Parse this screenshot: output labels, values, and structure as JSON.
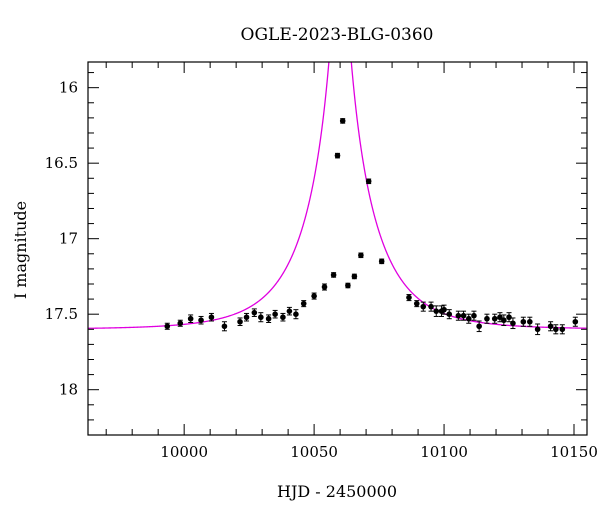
{
  "chart_data": {
    "type": "scatter",
    "title": "OGLE-2023-BLG-0360",
    "xlabel": "HJD - 2450000",
    "ylabel": "I magnitude",
    "xlim": [
      9963,
      10155
    ],
    "ylim": [
      18.3,
      15.83
    ],
    "y_inverted": true,
    "xticks": [
      10000,
      10050,
      10100,
      10150
    ],
    "yticks": [
      16,
      16.5,
      17,
      17.5,
      18
    ],
    "xtick_labels": [
      "10000",
      "10050",
      "10100",
      "10150"
    ],
    "ytick_labels": [
      "16",
      "16.5",
      "17",
      "17.5",
      "18"
    ],
    "grid": false,
    "colors": {
      "data": "#000000",
      "model": "#e000e0"
    },
    "model": {
      "type": "point-lens",
      "t0": 10060,
      "u0": 0.085,
      "tE": 24,
      "baseline_mag": 17.6,
      "color": "#e000e0"
    },
    "series": [
      {
        "marker": "filled-circle",
        "x": [
          9993.5,
          9998.5,
          10002.5,
          10006.5,
          10010.5,
          10015.5,
          10021.5,
          10024,
          10027,
          10029.5,
          10032.5,
          10035,
          10038,
          10040.5,
          10043,
          10046,
          10050,
          10054,
          10057.5,
          10059,
          10061,
          10063,
          10065.5,
          10068,
          10071,
          10076,
          10086.5,
          10089.5,
          10092,
          10095,
          10097,
          10099,
          10100,
          10102,
          10105.5,
          10107.5,
          10109.5,
          10111.5,
          10113.5,
          10116.5,
          10119.5,
          10121.5,
          10123,
          10125,
          10126.5,
          10130.5,
          10133,
          10136,
          10141,
          10143,
          10145.5,
          10150.5
        ],
        "y": [
          17.58,
          17.56,
          17.53,
          17.54,
          17.52,
          17.58,
          17.55,
          17.52,
          17.49,
          17.52,
          17.53,
          17.5,
          17.52,
          17.48,
          17.5,
          17.43,
          17.38,
          17.32,
          17.24,
          16.45,
          16.22,
          17.31,
          17.25,
          17.11,
          16.62,
          17.15,
          17.39,
          17.43,
          17.45,
          17.45,
          17.48,
          17.48,
          17.47,
          17.5,
          17.51,
          17.51,
          17.53,
          17.51,
          17.58,
          17.53,
          17.53,
          17.52,
          17.54,
          17.52,
          17.56,
          17.55,
          17.55,
          17.6,
          17.58,
          17.6,
          17.6,
          17.55
        ],
        "err": [
          0.02,
          0.02,
          0.025,
          0.025,
          0.025,
          0.03,
          0.025,
          0.025,
          0.025,
          0.03,
          0.025,
          0.025,
          0.025,
          0.025,
          0.03,
          0.02,
          0.02,
          0.02,
          0.015,
          0.015,
          0.015,
          0.015,
          0.015,
          0.015,
          0.015,
          0.015,
          0.02,
          0.02,
          0.03,
          0.03,
          0.035,
          0.035,
          0.03,
          0.03,
          0.03,
          0.03,
          0.03,
          0.03,
          0.035,
          0.03,
          0.03,
          0.03,
          0.035,
          0.03,
          0.035,
          0.03,
          0.03,
          0.035,
          0.03,
          0.03,
          0.03,
          0.03
        ]
      }
    ]
  }
}
